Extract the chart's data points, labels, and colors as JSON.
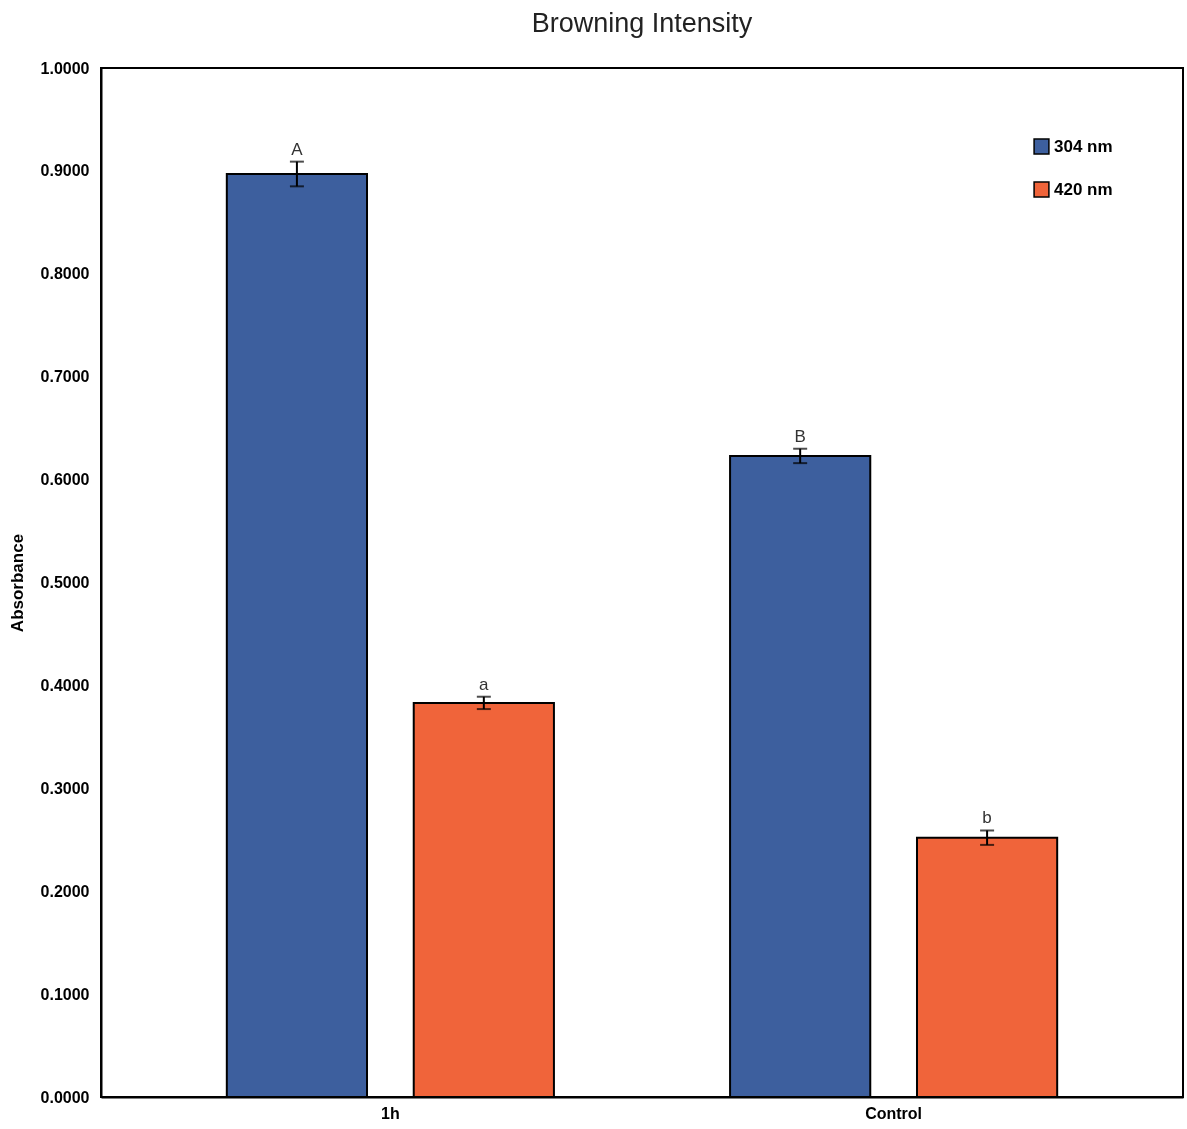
{
  "chart_data": {
    "type": "bar",
    "title": "Browning Intensity",
    "ylabel": "Absorbance",
    "categories": [
      "1h",
      "Control"
    ],
    "series": [
      {
        "name": "304 nm",
        "color": "#3d5f9e",
        "values": [
          0.897,
          0.623
        ],
        "errors": [
          0.012,
          0.007
        ]
      },
      {
        "name": "420 nm",
        "color": "#f0643a",
        "values": [
          0.383,
          0.252
        ],
        "errors": [
          0.006,
          0.007
        ]
      }
    ],
    "ylim": [
      0,
      1
    ],
    "yticks": [
      {
        "value": 0,
        "label": "0.0000"
      },
      {
        "value": 0.1,
        "label": "0.1000"
      },
      {
        "value": 0.2,
        "label": "0.2000"
      },
      {
        "value": 0.3,
        "label": "0.3000"
      },
      {
        "value": 0.4,
        "label": "0.4000"
      },
      {
        "value": 0.5,
        "label": "0.5000"
      },
      {
        "value": 0.6,
        "label": "0.6000"
      },
      {
        "value": 0.7,
        "label": "0.7000"
      },
      {
        "value": 0.8,
        "label": "0.8000"
      },
      {
        "value": 0.9,
        "label": "0.9000"
      },
      {
        "value": 1,
        "label": "1.0000"
      }
    ],
    "annotations": [
      "A",
      "a",
      "B",
      "b"
    ],
    "legend": "top right",
    "grid": false
  }
}
